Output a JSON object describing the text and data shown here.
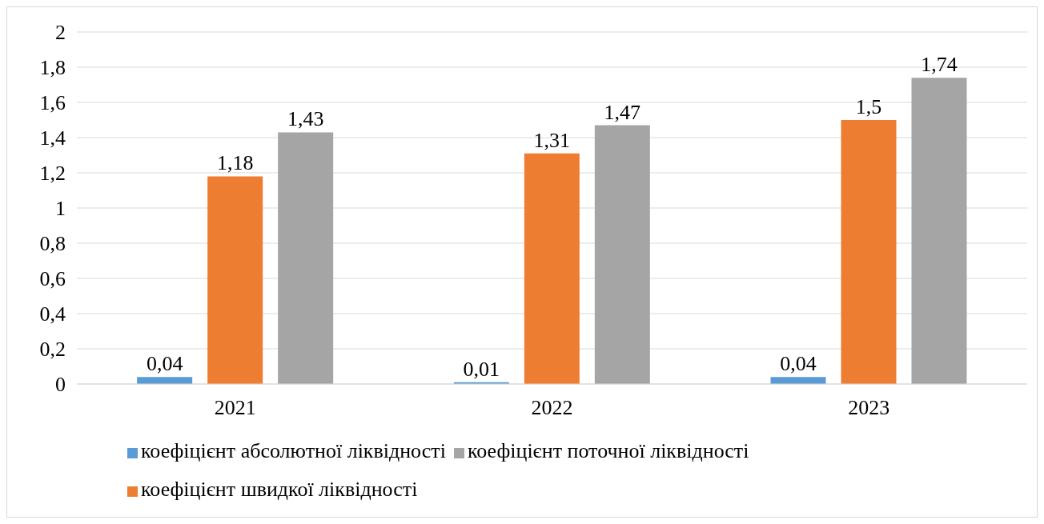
{
  "chart_data": {
    "type": "bar",
    "categories": [
      "2021",
      "2022",
      "2023"
    ],
    "series": [
      {
        "name": "коефіцієнт абсолютної ліквідності",
        "color": "#5b9bd5",
        "values": [
          0.04,
          0.01,
          0.04
        ],
        "value_labels": [
          "0,04",
          "0,01",
          "0,04"
        ]
      },
      {
        "name": "коефіцієнт швидкої ліквідності",
        "color": "#ed7d31",
        "values": [
          1.18,
          1.31,
          1.5
        ],
        "value_labels": [
          "1,18",
          "1,31",
          "1,5"
        ]
      },
      {
        "name": "коефіцієнт поточної ліквідності",
        "color": "#a5a5a5",
        "values": [
          1.43,
          1.47,
          1.74
        ],
        "value_labels": [
          "1,43",
          "1,47",
          "1,74"
        ]
      }
    ],
    "ylim": [
      0,
      2
    ],
    "yticks": [
      0,
      {
        "value": 0.2,
        "label": "0,2"
      },
      {
        "value": 0.4,
        "label": "0,4"
      },
      {
        "value": 0.6,
        "label": "0,6"
      },
      {
        "value": 0.8,
        "label": "0,8"
      },
      1,
      {
        "value": 1.2,
        "label": "1,2"
      },
      {
        "value": 1.4,
        "label": "1,4"
      },
      {
        "value": 1.6,
        "label": "1,6"
      },
      {
        "value": 1.8,
        "label": "1,8"
      },
      2
    ],
    "grid": "y",
    "legend": "bottom"
  }
}
